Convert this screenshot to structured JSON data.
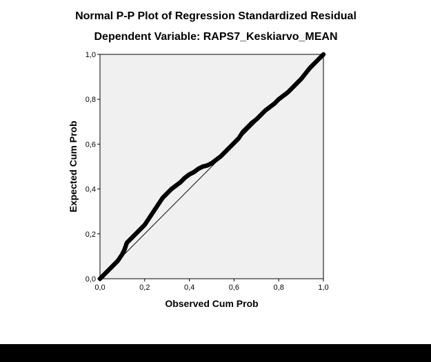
{
  "chart_data": {
    "type": "scatter",
    "title": "Normal P-P Plot of Regression Standardized Residual",
    "subtitle": "Dependent Variable: RAPS7_Keskiarvo_MEAN",
    "xlabel": "Observed Cum Prob",
    "ylabel": "Expected Cum Prob",
    "xlim": [
      0,
      1
    ],
    "ylim": [
      0,
      1
    ],
    "x_ticks": [
      "0,0",
      "0,2",
      "0,4",
      "0,6",
      "0,8",
      "1,0"
    ],
    "y_ticks": [
      "0,0",
      "0,2",
      "0,4",
      "0,6",
      "0,8",
      "1,0"
    ],
    "grid": false,
    "plot_background": "#f0f0f0",
    "point_color": "#000000",
    "reference_line": {
      "from": [
        0,
        0
      ],
      "to": [
        1,
        1
      ]
    },
    "points": [
      [
        0.0,
        0.0
      ],
      [
        0.02,
        0.02
      ],
      [
        0.04,
        0.04
      ],
      [
        0.06,
        0.06
      ],
      [
        0.08,
        0.08
      ],
      [
        0.1,
        0.11
      ],
      [
        0.11,
        0.13
      ],
      [
        0.12,
        0.16
      ],
      [
        0.14,
        0.18
      ],
      [
        0.16,
        0.2
      ],
      [
        0.18,
        0.22
      ],
      [
        0.2,
        0.24
      ],
      [
        0.22,
        0.27
      ],
      [
        0.24,
        0.3
      ],
      [
        0.26,
        0.33
      ],
      [
        0.28,
        0.36
      ],
      [
        0.3,
        0.38
      ],
      [
        0.32,
        0.4
      ],
      [
        0.34,
        0.415
      ],
      [
        0.36,
        0.43
      ],
      [
        0.38,
        0.45
      ],
      [
        0.4,
        0.465
      ],
      [
        0.42,
        0.475
      ],
      [
        0.44,
        0.49
      ],
      [
        0.46,
        0.5
      ],
      [
        0.48,
        0.505
      ],
      [
        0.5,
        0.515
      ],
      [
        0.52,
        0.53
      ],
      [
        0.54,
        0.545
      ],
      [
        0.56,
        0.565
      ],
      [
        0.58,
        0.585
      ],
      [
        0.6,
        0.605
      ],
      [
        0.62,
        0.625
      ],
      [
        0.64,
        0.655
      ],
      [
        0.66,
        0.675
      ],
      [
        0.68,
        0.695
      ],
      [
        0.7,
        0.71
      ],
      [
        0.72,
        0.73
      ],
      [
        0.74,
        0.75
      ],
      [
        0.76,
        0.765
      ],
      [
        0.78,
        0.78
      ],
      [
        0.8,
        0.8
      ],
      [
        0.82,
        0.815
      ],
      [
        0.84,
        0.83
      ],
      [
        0.86,
        0.85
      ],
      [
        0.88,
        0.87
      ],
      [
        0.9,
        0.89
      ],
      [
        0.92,
        0.915
      ],
      [
        0.94,
        0.94
      ],
      [
        0.96,
        0.96
      ],
      [
        0.98,
        0.98
      ],
      [
        1.0,
        1.0
      ]
    ]
  }
}
